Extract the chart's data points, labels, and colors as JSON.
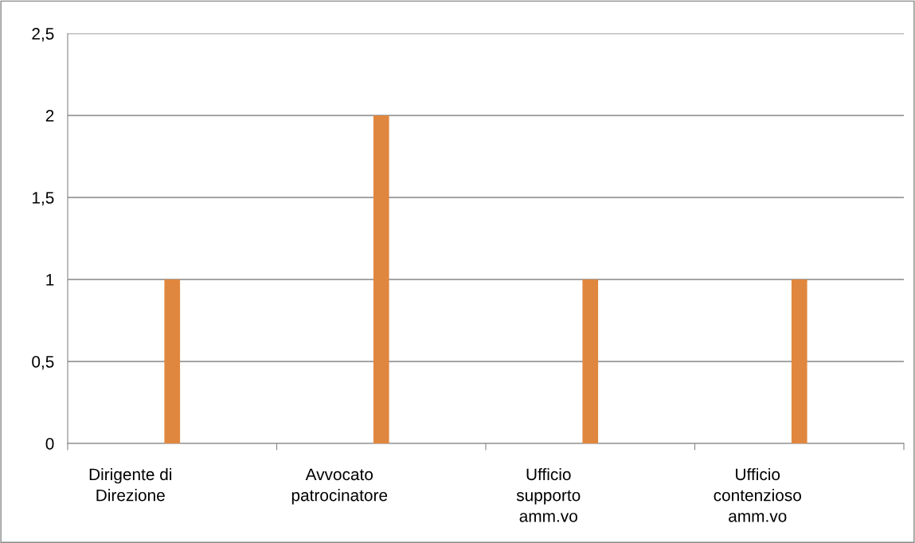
{
  "chart_data": {
    "type": "bar",
    "categories": [
      "Dirigente di\nDirezione",
      "Avvocato\npatrocinatore",
      "Ufficio\nsupporto\namm.vo",
      "Ufficio\ncontenzioso\namm.vo"
    ],
    "values": [
      1,
      2,
      1,
      1
    ],
    "color": "#e0873f",
    "ylim": [
      0,
      2.5
    ],
    "yticks": [
      0,
      {
        "value": 0.5,
        "label": "0,5"
      },
      1,
      {
        "value": 1.5,
        "label": "1,5"
      },
      2,
      {
        "value": 2.5,
        "label": "2,5"
      }
    ],
    "grid": "y",
    "legend": false
  }
}
